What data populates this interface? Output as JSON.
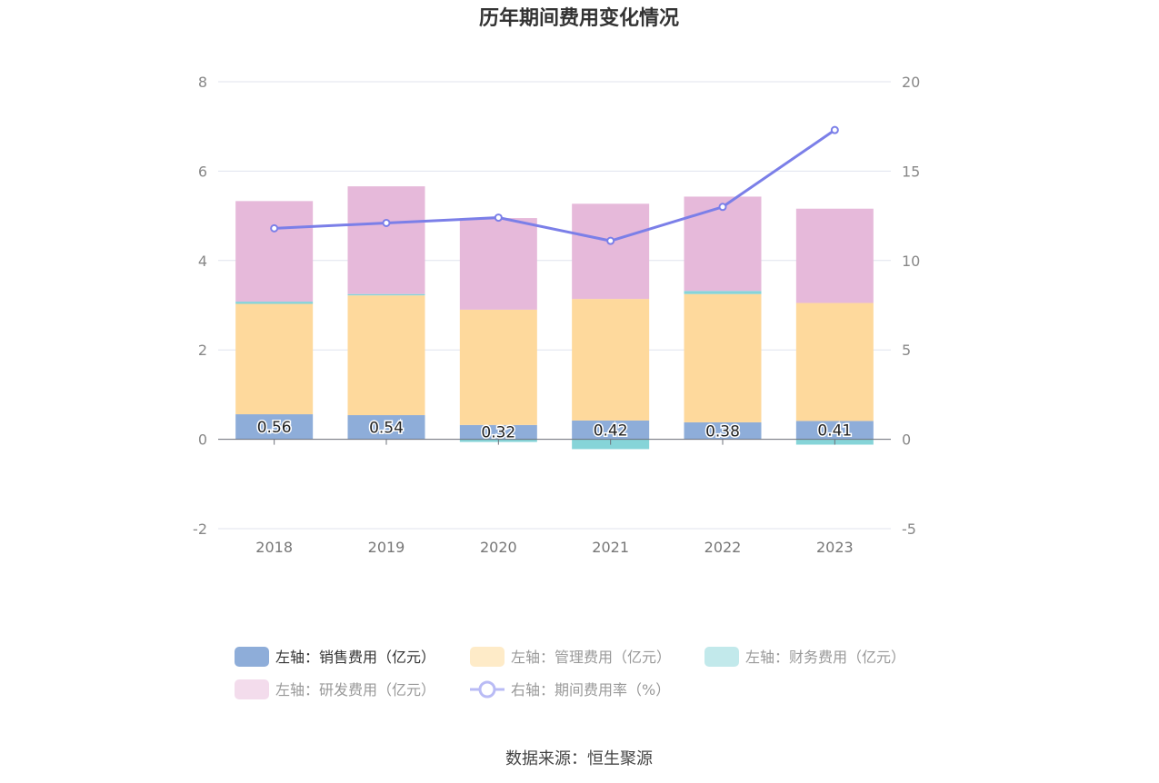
{
  "chart_data": {
    "type": "bar",
    "title": "历年期间费用变化情况",
    "categories": [
      "2018",
      "2019",
      "2020",
      "2021",
      "2022",
      "2023"
    ],
    "y_left": {
      "ticks": [
        "-2",
        "0",
        "2",
        "4",
        "6",
        "8"
      ],
      "ylim": [
        -2,
        8
      ]
    },
    "y_right": {
      "ticks": [
        "-5",
        "0",
        "5",
        "10",
        "15",
        "20"
      ],
      "ylim": [
        -5,
        20
      ]
    },
    "stacked": true,
    "grid": true,
    "legend_position": "bottom",
    "series": [
      {
        "name": "左轴：销售费用（亿元）",
        "axis": "left",
        "type": "bar",
        "color": "#8eadd9",
        "values": [
          0.56,
          0.54,
          0.32,
          0.42,
          0.38,
          0.41
        ],
        "labels": [
          "0.56",
          "0.54",
          "0.32",
          "0.42",
          "0.38",
          "0.41"
        ]
      },
      {
        "name": "左轴：管理费用（亿元）",
        "axis": "left",
        "type": "bar",
        "color": "#fed99c",
        "values": [
          2.47,
          2.68,
          2.58,
          2.72,
          2.87,
          2.64
        ]
      },
      {
        "name": "左轴：财务费用（亿元）",
        "axis": "left",
        "type": "bar",
        "color": "#86d4d8",
        "values": [
          0.05,
          0.03,
          -0.06,
          -0.22,
          0.07,
          -0.12
        ]
      },
      {
        "name": "左轴：研发费用（亿元）",
        "axis": "left",
        "type": "bar",
        "color": "#e6b9da",
        "values": [
          2.25,
          2.41,
          2.05,
          2.13,
          2.11,
          2.11
        ]
      },
      {
        "name": "右轴：期间费用率（%）",
        "axis": "right",
        "type": "line",
        "color": "#7b7fe8",
        "values": [
          11.8,
          12.1,
          12.4,
          11.1,
          13.0,
          17.3
        ]
      }
    ],
    "legend_swatches": [
      "#8eadd9",
      "#feebc8",
      "#c2e9eb",
      "#f3dcec",
      "#b9bbf5"
    ]
  },
  "source_text": "数据来源：恒生聚源"
}
